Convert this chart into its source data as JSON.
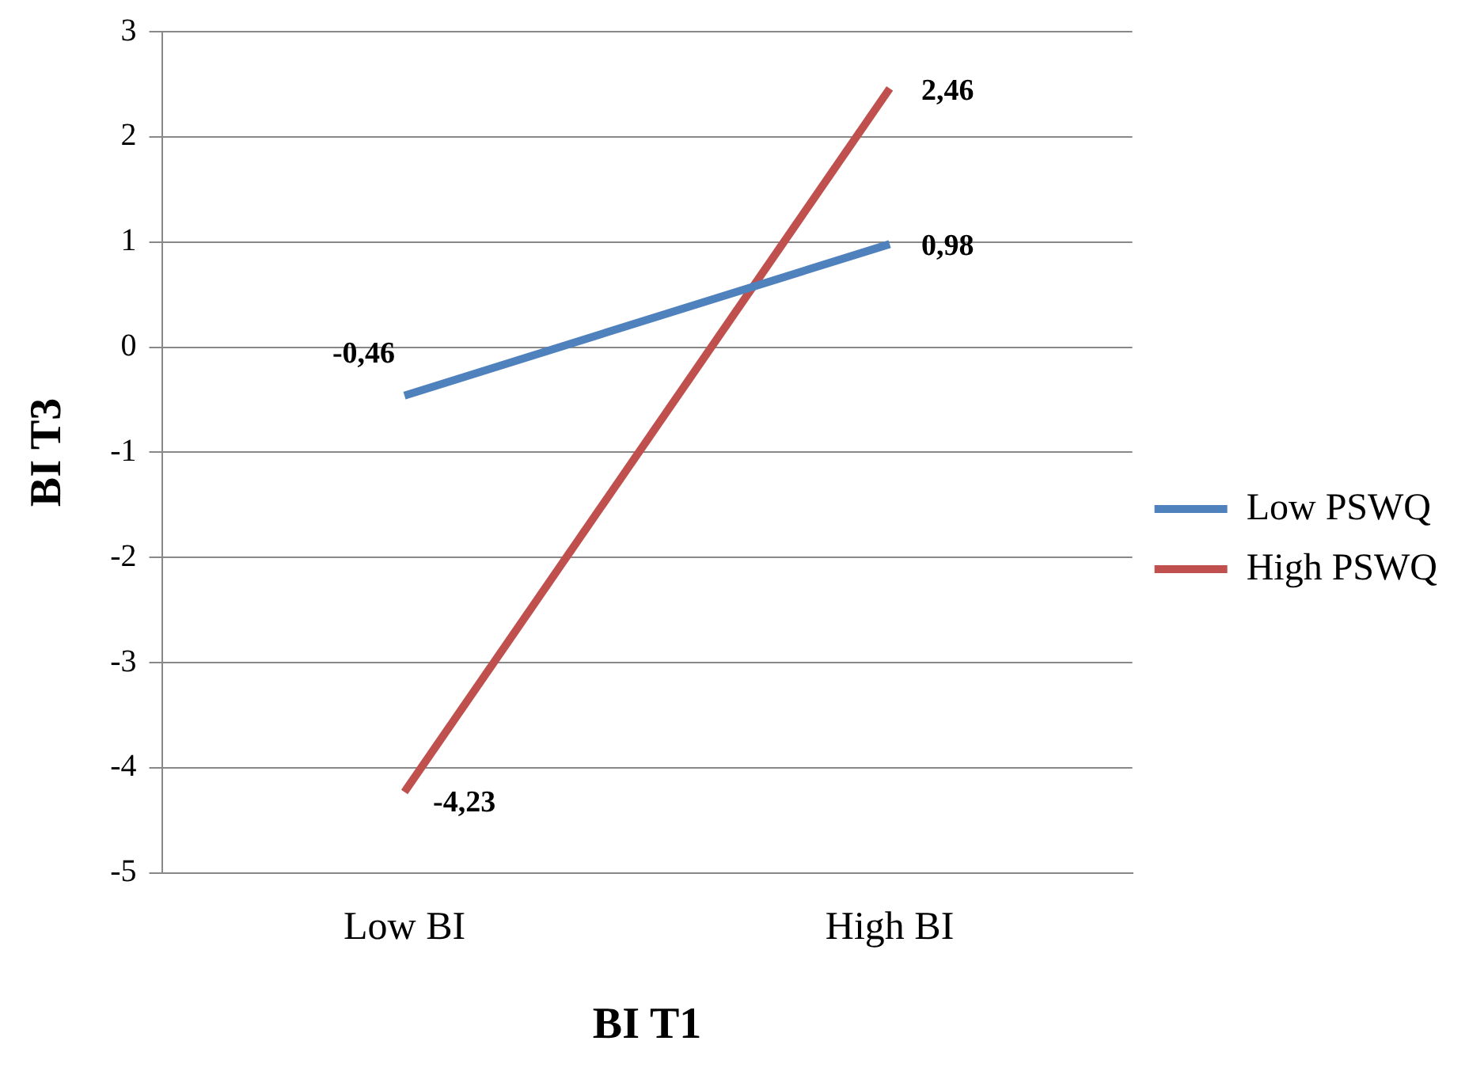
{
  "chart_data": {
    "type": "line",
    "xlabel": "BI T1",
    "ylabel": "BI T3",
    "categories": [
      "Low BI",
      "High BI"
    ],
    "series": [
      {
        "name": "Low PSWQ",
        "color": "#4f81bd",
        "values": [
          -0.46,
          0.98
        ],
        "value_labels": [
          "-0,46",
          "0,98"
        ]
      },
      {
        "name": "High PSWQ",
        "color": "#c0504d",
        "values": [
          -4.23,
          2.46
        ],
        "value_labels": [
          "-4,23",
          "2,46"
        ]
      }
    ],
    "ylim": [
      -5,
      3
    ],
    "yticks": [
      -5,
      -4,
      -3,
      -2,
      -1,
      0,
      1,
      2,
      3
    ],
    "grid": "y",
    "legend": "right",
    "marker": "none",
    "line_style": "solid"
  }
}
